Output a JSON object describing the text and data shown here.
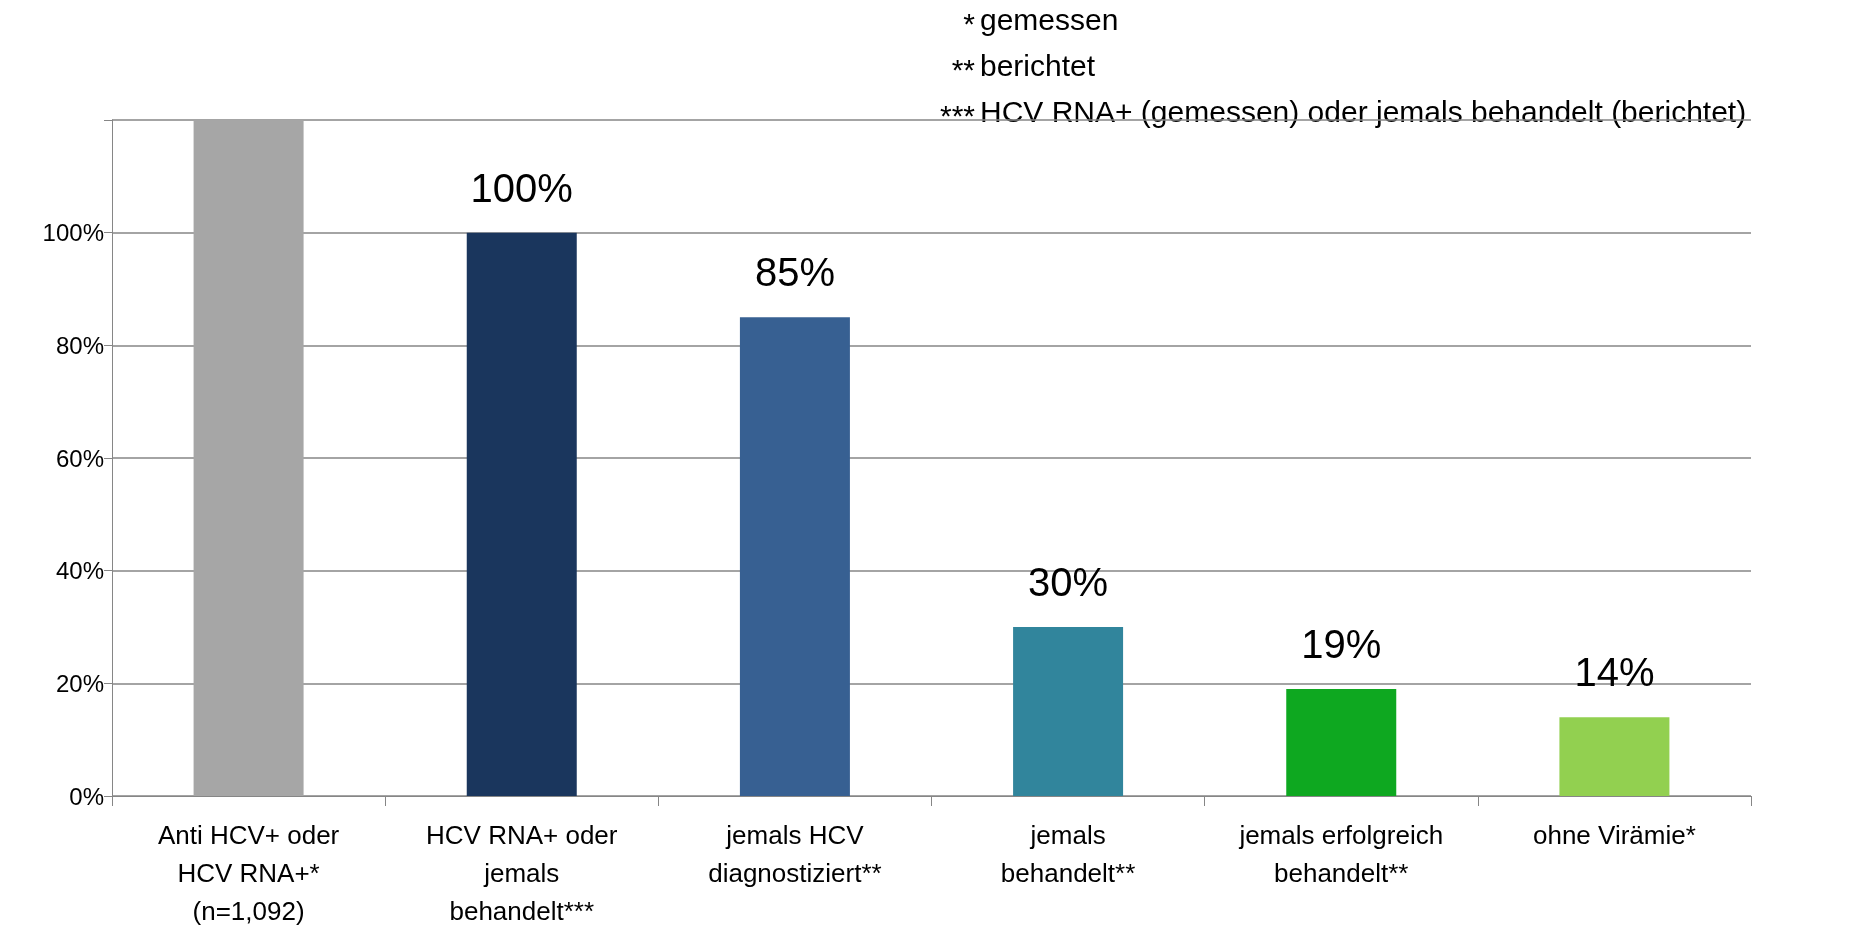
{
  "chart_data": {
    "type": "bar",
    "categories": [
      "Anti HCV+ oder\nHCV RNA+*\n(n=1,092)",
      "HCV RNA+ oder\njemals\nbehandelt***",
      "jemals HCV\ndiagnostiziert**",
      "jemals\nbehandelt**",
      "jemals erfolgreich\nbehandelt**",
      "ohne Virämie*"
    ],
    "values": [
      120,
      100,
      85,
      30,
      19,
      14
    ],
    "colors": [
      "#a6a6a6",
      "#1a365d",
      "#376092",
      "#31859c",
      "#0ea820",
      "#92d050"
    ],
    "value_labels": [
      null,
      "100%",
      "85%",
      "30%",
      "19%",
      "14%"
    ],
    "ylim": [
      0,
      120
    ],
    "yticks": [
      {
        "value": 0,
        "label": "0%"
      },
      {
        "value": 20,
        "label": "20%"
      },
      {
        "value": 40,
        "label": "40%"
      },
      {
        "value": 60,
        "label": "60%"
      },
      {
        "value": 80,
        "label": "80%"
      },
      {
        "value": 100,
        "label": "100%"
      },
      {
        "value": 120,
        "label": null
      }
    ],
    "grid": "y",
    "annotations": [
      "* gemessen",
      "** berichtet",
      "*** HCV RNA+ (gemessen) oder jemals behandelt (berichtet)"
    ]
  }
}
